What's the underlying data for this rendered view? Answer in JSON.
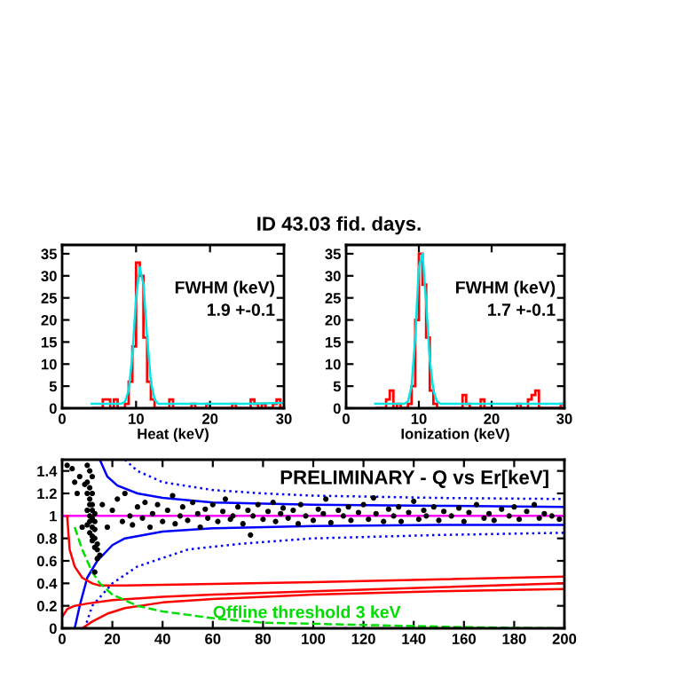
{
  "chart_data": [
    {
      "type": "histogram",
      "title": "ID 43.03 fid. days.",
      "xlabel": "Heat (keV)",
      "color": "#ff0000",
      "bins": [
        4,
        4.5,
        5,
        5.5,
        6,
        6.5,
        7,
        7.5,
        8,
        8.5,
        9,
        9.5,
        10,
        10.5,
        11,
        11.5,
        12,
        12.5,
        13,
        13.5,
        14,
        14.5,
        15,
        15.5,
        16,
        16.5,
        17,
        17.5,
        18,
        18.5,
        19,
        19.5,
        20,
        20.5,
        21,
        21.5,
        22,
        22.5,
        23,
        23.5,
        24,
        24.5,
        25,
        25.5,
        26,
        26.5,
        27,
        27.5,
        28,
        28.5,
        29,
        29.5,
        30
      ],
      "values": [
        0,
        0,
        0,
        2,
        2,
        0,
        2,
        0,
        0,
        1,
        6,
        14,
        33,
        30,
        16,
        6,
        2,
        0,
        0,
        0,
        0,
        2,
        0,
        0,
        0,
        0,
        0,
        1,
        0,
        0,
        0,
        1,
        0,
        0,
        0,
        0,
        0,
        0,
        1,
        0,
        0,
        0,
        0,
        2,
        1,
        0,
        1,
        0,
        0,
        1,
        2,
        0
      ],
      "series": [
        {
          "type": "line",
          "color": "#00e5e5",
          "x": [
            4,
            8,
            8.5,
            9,
            9.5,
            10,
            10.5,
            11,
            11.5,
            12,
            12.5,
            13,
            15,
            20,
            25,
            30
          ],
          "values": [
            1,
            1,
            1.5,
            4,
            12,
            25,
            32,
            28,
            16,
            6,
            2,
            1,
            1,
            1,
            1,
            1.2
          ]
        }
      ],
      "annotations": [
        "FWHM (keV)\n1.9 +-0.1"
      ],
      "xlim": [
        0,
        30
      ],
      "xticks": [
        0,
        10,
        20,
        30
      ],
      "ylim": [
        0,
        37
      ],
      "yticks": [
        0,
        5,
        10,
        15,
        20,
        25,
        30,
        35
      ],
      "grid": false
    },
    {
      "type": "histogram",
      "xlabel": "Ionization (keV)",
      "color": "#ff0000",
      "bins": [
        4,
        4.5,
        5,
        5.5,
        6,
        6.5,
        7,
        7.5,
        8,
        8.5,
        9,
        9.5,
        10,
        10.5,
        11,
        11.5,
        12,
        12.5,
        13,
        13.5,
        14,
        14.5,
        15,
        15.5,
        16,
        16.5,
        17,
        17.5,
        18,
        18.5,
        19,
        19.5,
        20,
        20.5,
        21,
        21.5,
        22,
        22.5,
        23,
        23.5,
        24,
        24.5,
        25,
        25.5,
        26,
        26.5,
        27,
        27.5,
        28,
        28.5,
        29,
        29.5,
        30
      ],
      "values": [
        0,
        0,
        0,
        2,
        4,
        0,
        1,
        0,
        0,
        1,
        5,
        20,
        35,
        28,
        16,
        4,
        1,
        0,
        0,
        0,
        0,
        0,
        0,
        0,
        3,
        1,
        0,
        0,
        0,
        2,
        0,
        0,
        0,
        0,
        0,
        0,
        0,
        0,
        0,
        1,
        0,
        0,
        2,
        3,
        4,
        0,
        0,
        0,
        0,
        0,
        0,
        1
      ],
      "series": [
        {
          "type": "line",
          "color": "#00e5e5",
          "x": [
            4,
            8,
            8.5,
            9,
            9.5,
            10,
            10.5,
            11,
            11.5,
            12,
            12.5,
            13,
            20,
            30
          ],
          "values": [
            1,
            1,
            1.5,
            5,
            16,
            32,
            35,
            24,
            11,
            4,
            1.5,
            1,
            1,
            1
          ]
        }
      ],
      "annotations": [
        "FWHM (keV)\n1.7 +-0.1"
      ],
      "xlim": [
        0,
        30
      ],
      "xticks": [
        0,
        10,
        20,
        30
      ],
      "ylim": [
        0,
        37
      ],
      "yticks": [
        0,
        5,
        10,
        15,
        20,
        25,
        30,
        35
      ],
      "grid": false
    },
    {
      "type": "scatter",
      "grid": false,
      "xlim": [
        0,
        200
      ],
      "xticks": [
        0,
        20,
        40,
        60,
        80,
        100,
        120,
        140,
        160,
        180,
        200
      ],
      "ylim": [
        0,
        1.5
      ],
      "yticks": [
        0,
        0.2,
        0.4,
        0.6,
        0.8,
        1,
        1.2,
        1.4
      ],
      "annotations": [
        "PRELIMINARY - Q vs Er[keV]",
        "Offline threshold 3 keV"
      ],
      "series": [
        {
          "type": "line",
          "color": "#ff00ff",
          "line_style": "solid",
          "x": [
            0,
            200
          ],
          "values": [
            1,
            1
          ]
        },
        {
          "type": "line",
          "color": "#0000ff",
          "line_style": "solid",
          "x": [
            15,
            18,
            22,
            30,
            40,
            60,
            80,
            100,
            150,
            200
          ],
          "values": [
            1.5,
            1.35,
            1.27,
            1.2,
            1.16,
            1.12,
            1.11,
            1.1,
            1.09,
            1.08
          ]
        },
        {
          "type": "line",
          "color": "#0000ff",
          "line_style": "solid",
          "x": [
            5,
            7,
            10,
            14,
            20,
            25,
            40,
            60,
            100,
            150,
            200
          ],
          "values": [
            0,
            0.2,
            0.45,
            0.6,
            0.74,
            0.8,
            0.86,
            0.89,
            0.91,
            0.92,
            0.92
          ]
        },
        {
          "type": "line",
          "color": "#0000ff",
          "line_style": "dotted",
          "x": [
            25,
            30,
            40,
            60,
            80,
            100,
            150,
            200
          ],
          "values": [
            1.5,
            1.4,
            1.3,
            1.23,
            1.2,
            1.18,
            1.16,
            1.15
          ]
        },
        {
          "type": "line",
          "color": "#0000ff",
          "line_style": "dotted",
          "x": [
            9,
            12,
            20,
            30,
            50,
            70,
            100,
            150,
            200
          ],
          "values": [
            0,
            0.2,
            0.4,
            0.55,
            0.7,
            0.75,
            0.8,
            0.83,
            0.85
          ]
        },
        {
          "type": "line",
          "color": "#ff0000",
          "line_style": "solid",
          "x": [
            2,
            3,
            5,
            8,
            12,
            15,
            25,
            50,
            100,
            200
          ],
          "values": [
            1.0,
            0.7,
            0.55,
            0.45,
            0.4,
            0.38,
            0.38,
            0.39,
            0.41,
            0.46
          ]
        },
        {
          "type": "line",
          "color": "#ff0000",
          "line_style": "solid",
          "x": [
            0,
            2,
            5,
            10,
            20,
            40,
            60,
            100,
            200
          ],
          "values": [
            0.1,
            0.17,
            0.2,
            0.22,
            0.25,
            0.28,
            0.3,
            0.33,
            0.4
          ]
        },
        {
          "type": "line",
          "color": "#ff0000",
          "line_style": "solid",
          "x": [
            8,
            12,
            18,
            25,
            40,
            60,
            100,
            150,
            200
          ],
          "values": [
            0,
            0.06,
            0.13,
            0.18,
            0.23,
            0.26,
            0.3,
            0.33,
            0.35
          ]
        },
        {
          "type": "line",
          "color": "#00dd00",
          "line_style": "dashed",
          "x": [
            5,
            8,
            12,
            15,
            20,
            30,
            40,
            60,
            80,
            120,
            160,
            200
          ],
          "values": [
            0.9,
            0.7,
            0.5,
            0.4,
            0.3,
            0.2,
            0.15,
            0.09,
            0.05,
            0.03,
            0.01,
            0
          ]
        },
        {
          "type": "scatter",
          "color": "#000000",
          "marker": "circle",
          "x": [
            2,
            4,
            5,
            6,
            7,
            8,
            9,
            10,
            11,
            12,
            10,
            11,
            12,
            11,
            12,
            10,
            11,
            12,
            11,
            12,
            13,
            11,
            12,
            13,
            12,
            14,
            13,
            14,
            15,
            14,
            13,
            10,
            11,
            13,
            12,
            10,
            13,
            16,
            18,
            20,
            22,
            24,
            25,
            27,
            28,
            30,
            32,
            33,
            35,
            36,
            38,
            40,
            42,
            44,
            45,
            47,
            48,
            50,
            52,
            54,
            55,
            57,
            58,
            60,
            62,
            64,
            65,
            67,
            68,
            70,
            72,
            74,
            75,
            76,
            78,
            80,
            82,
            84,
            85,
            87,
            88,
            90,
            92,
            94,
            95,
            97,
            100,
            102,
            104,
            105,
            107,
            110,
            112,
            114,
            115,
            118,
            120,
            122,
            124,
            125,
            128,
            130,
            132,
            134,
            135,
            138,
            140,
            142,
            144,
            145,
            148,
            150,
            152,
            155,
            158,
            160,
            162,
            165,
            168,
            170,
            172,
            175,
            178,
            180,
            182,
            185,
            188,
            190,
            192,
            195,
            198
          ],
          "values": [
            1.45,
            1.42,
            1.3,
            1.2,
            1.35,
            0.9,
            1.28,
            1.45,
            1.4,
            1.35,
            1.3,
            1.25,
            1.2,
            1.15,
            1.1,
            1.05,
            1.0,
            0.98,
            0.95,
            0.9,
            0.88,
            0.85,
            0.82,
            0.8,
            0.78,
            0.75,
            0.72,
            0.7,
            0.65,
            0.62,
            0.5,
            1.2,
            1.1,
            1.02,
            1.05,
            0.92,
            0.95,
            1.1,
            0.9,
            1.05,
            1.15,
            0.95,
            1.2,
            1.0,
            0.92,
            1.08,
            0.98,
            1.12,
            0.9,
            1.02,
            1.1,
            0.95,
            1.05,
            1.18,
            0.93,
            1.0,
            1.08,
            0.96,
            1.12,
            1.02,
            0.9,
            1.06,
            0.98,
            1.1,
            0.95,
            1.04,
            1.15,
            0.97,
            1.0,
            1.08,
            0.93,
            1.05,
            0.83,
            1.0,
            1.1,
            0.97,
            1.04,
            1.12,
            0.95,
            1.02,
            1.07,
            0.98,
            1.05,
            0.93,
            1.1,
            1.0,
            0.96,
            1.06,
            1.02,
            1.15,
            0.94,
            1.05,
            1.0,
            1.08,
            0.96,
            1.03,
            1.1,
            0.97,
            1.16,
            1.02,
            0.95,
            1.06,
            1.0,
            1.08,
            0.95,
            1.03,
            1.13,
            0.97,
            1.05,
            1.0,
            1.08,
            0.96,
            1.04,
            1.0,
            1.07,
            0.95,
            1.03,
            1.1,
            0.98,
            1.02,
            0.96,
            1.06,
            1.0,
            1.08,
            0.97,
            1.04,
            1.1,
            0.98,
            1.02,
            1.0,
            0.97
          ]
        }
      ]
    }
  ]
}
